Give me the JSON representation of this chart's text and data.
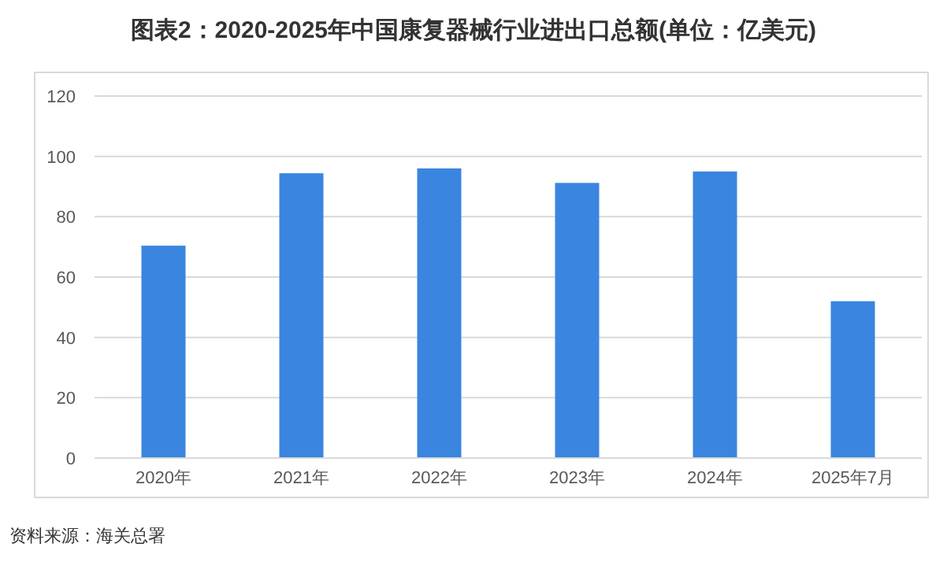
{
  "chart_data": {
    "type": "bar",
    "title": "图表2：2020-2025年中国康复器械行业进出口总额(单位：亿美元)",
    "categories": [
      "2020年",
      "2021年",
      "2022年",
      "2023年",
      "2024年",
      "2025年7月"
    ],
    "values": [
      70.4,
      94.4,
      96,
      91.2,
      95,
      52
    ],
    "color": "#3a85e0",
    "ylim": [
      0,
      120
    ],
    "yticks": [
      0,
      20,
      40,
      60,
      80,
      100,
      120
    ],
    "grid": "y",
    "annotations": [
      "资料来源：海关总署"
    ]
  }
}
